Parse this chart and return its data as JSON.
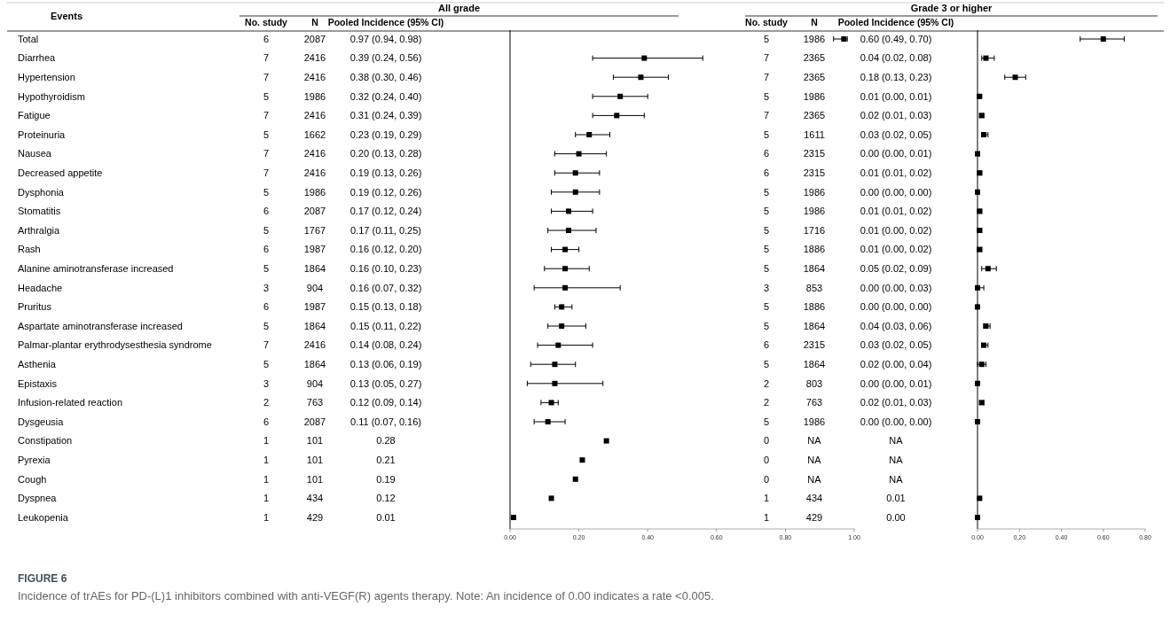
{
  "chart_data": [
    {
      "type": "other",
      "title": "All grade",
      "subtitle": "Grade 3 or higher",
      "ylabel": "Events",
      "categories": [
        "Total",
        "Diarrhea",
        "Hypertension",
        "Hypothyroidism",
        "Fatigue",
        "Proteinuria",
        "Nausea",
        "Decreased appetite",
        "Dysphonia",
        "Stomatitis",
        "Arthralgia",
        "Rash",
        "Alanine aminotransferase increased",
        "Headache",
        "Pruritus",
        "Aspartate aminotransferase increased",
        "Palmar-plantar erythrodysesthesia syndrome",
        "Asthenia",
        "Epistaxis",
        "Infusion-related reaction",
        "Dysgeusia",
        "Constipation",
        "Pyrexia",
        "Cough",
        "Dyspnea",
        "Leukopenia"
      ],
      "series": [
        {
          "name": "No. study",
          "values": [
            6,
            7,
            7,
            5,
            7,
            5,
            7,
            7,
            5,
            6,
            5,
            6,
            5,
            3,
            6,
            5,
            7,
            5,
            3,
            2,
            6,
            1,
            1,
            1,
            1,
            1
          ]
        },
        {
          "name": "N",
          "values": [
            2087,
            2416,
            2416,
            1986,
            2416,
            1662,
            2416,
            2416,
            1986,
            2087,
            1767,
            1987,
            1864,
            904,
            1987,
            1864,
            2416,
            1864,
            904,
            763,
            2087,
            101,
            101,
            101,
            434,
            429
          ]
        },
        {
          "name": "Pooled Incidence (95% CI)",
          "values": [
            0.97,
            0.39,
            0.38,
            0.32,
            0.31,
            0.23,
            0.2,
            0.19,
            0.19,
            0.17,
            0.17,
            0.16,
            0.16,
            0.16,
            0.15,
            0.15,
            0.14,
            0.13,
            0.13,
            0.12,
            0.11,
            0.28,
            0.21,
            0.19,
            0.12,
            0.01
          ],
          "value_labels": [
            "0.97 (0.94, 0.98)",
            "0.39 (0.24, 0.56)",
            "0.38 (0.30, 0.46)",
            "0.32 (0.24, 0.40)",
            "0.31 (0.24, 0.39)",
            "0.23 (0.19, 0.29)",
            "0.20 (0.13, 0.28)",
            "0.19 (0.13, 0.26)",
            "0.19 (0.12, 0.26)",
            "0.17 (0.12, 0.24)",
            "0.17 (0.11, 0.25)",
            "0.16 (0.12, 0.20)",
            "0.16 (0.10, 0.23)",
            "0.16 (0.07, 0.32)",
            "0.15 (0.13, 0.18)",
            "0.15 (0.11, 0.22)",
            "0.14 (0.08, 0.24)",
            "0.13 (0.06, 0.19)",
            "0.13 (0.05, 0.27)",
            "0.12 (0.09, 0.14)",
            "0.11 (0.07, 0.16)",
            "0.28",
            "0.21",
            "0.19",
            "0.12",
            "0.01"
          ]
        },
        {
          "name": "No. study",
          "values": [
            5,
            7,
            7,
            5,
            7,
            5,
            6,
            6,
            5,
            5,
            5,
            5,
            5,
            3,
            5,
            5,
            6,
            5,
            2,
            2,
            5,
            0,
            0,
            0,
            1,
            1
          ]
        },
        {
          "name": "N",
          "values": [
            1986,
            2365,
            2365,
            1986,
            2365,
            1611,
            2315,
            2315,
            1986,
            1986,
            1716,
            1886,
            1864,
            853,
            1886,
            1864,
            2315,
            1864,
            803,
            763,
            1986,
            null,
            null,
            null,
            434,
            429
          ],
          "value_labels": [
            "1986",
            "2365",
            "2365",
            "1986",
            "2365",
            "1611",
            "2315",
            "2315",
            "1986",
            "1986",
            "1716",
            "1886",
            "1864",
            "853",
            "1886",
            "1864",
            "2315",
            "1864",
            "803",
            "763",
            "1986",
            "NA",
            "NA",
            "NA",
            "434",
            "429"
          ]
        },
        {
          "name": "Pooled Incidence (95% CI)",
          "values": [
            0.6,
            0.04,
            0.18,
            0.01,
            0.02,
            0.03,
            0.0,
            0.01,
            0.0,
            0.01,
            0.01,
            0.01,
            0.05,
            0.0,
            0.0,
            0.04,
            0.03,
            0.02,
            0.0,
            0.02,
            0.0,
            null,
            null,
            null,
            0.01,
            0.0
          ],
          "value_labels": [
            "0.60 (0.49, 0.70)",
            "0.04 (0.02, 0.08)",
            "0.18 (0.13, 0.23)",
            "0.01 (0.00, 0.01)",
            "0.02 (0.01, 0.03)",
            "0.03 (0.02, 0.05)",
            "0.00 (0.00, 0.01)",
            "0.01 (0.01, 0.02)",
            "0.00 (0.00, 0.00)",
            "0.01 (0.01, 0.02)",
            "0.01 (0.00, 0.02)",
            "0.01 (0.00, 0.02)",
            "0.05 (0.02, 0.09)",
            "0.00 (0.00, 0.03)",
            "0.00 (0.00, 0.00)",
            "0.04 (0.03, 0.06)",
            "0.03 (0.02, 0.05)",
            "0.02 (0.00, 0.04)",
            "0.00 (0.00, 0.01)",
            "0.02 (0.01, 0.03)",
            "0.00 (0.00, 0.00)",
            "NA",
            "NA",
            "NA",
            "0.01",
            "0.00"
          ]
        }
      ],
      "data_labels": true,
      "annotations": [
        "FIGURE 6",
        "Incidence of trAEs for PD-(L)1 inhibitors combined with anti-VEGF(R) agents therapy. Note: An incidence of 0.00 indicates a rate <0.005."
      ]
    },
    {
      "type": "scatter",
      "orientation": "horizontal",
      "marker": "square",
      "categories": [
        null,
        null,
        null,
        null,
        null,
        null,
        null,
        null,
        null,
        null,
        null,
        null,
        null,
        null,
        null,
        null,
        null,
        null,
        null,
        null,
        null,
        null,
        null,
        null,
        null,
        null
      ],
      "xlim": [
        0,
        1
      ],
      "xticks": [
        {
          "value": 0,
          "label": "0.00"
        },
        {
          "value": 0.2,
          "label": "0.20"
        },
        {
          "value": 0.4,
          "label": "0.40"
        },
        {
          "value": 0.6,
          "label": "0.60"
        },
        {
          "value": 0.8,
          "label": "0.80"
        },
        {
          "value": 1,
          "label": "1.00"
        }
      ],
      "series": [
        {
          "color": "#000000",
          "values": [
            0.97,
            0.39,
            0.38,
            0.32,
            0.31,
            0.23,
            0.2,
            0.19,
            0.19,
            0.17,
            0.17,
            0.16,
            0.16,
            0.16,
            0.15,
            0.15,
            0.14,
            0.13,
            0.13,
            0.12,
            0.11,
            0.28,
            0.21,
            0.19,
            0.12,
            0.01
          ],
          "errors": [
            [
              0.94,
              0.98
            ],
            [
              0.24,
              0.56
            ],
            [
              0.3,
              0.46
            ],
            [
              0.24,
              0.4
            ],
            [
              0.24,
              0.39
            ],
            [
              0.19,
              0.29
            ],
            [
              0.13,
              0.28
            ],
            [
              0.13,
              0.26
            ],
            [
              0.12,
              0.26
            ],
            [
              0.12,
              0.24
            ],
            [
              0.11,
              0.25
            ],
            [
              0.12,
              0.2
            ],
            [
              0.1,
              0.23
            ],
            [
              0.07,
              0.32
            ],
            [
              0.13,
              0.18
            ],
            [
              0.11,
              0.22
            ],
            [
              0.08,
              0.24
            ],
            [
              0.06,
              0.19
            ],
            [
              0.05,
              0.27
            ],
            [
              0.09,
              0.14
            ],
            [
              0.07,
              0.16
            ],
            null,
            null,
            null,
            null,
            null
          ]
        }
      ]
    },
    {
      "type": "scatter",
      "orientation": "horizontal",
      "marker": "square",
      "categories": [
        null,
        null,
        null,
        null,
        null,
        null,
        null,
        null,
        null,
        null,
        null,
        null,
        null,
        null,
        null,
        null,
        null,
        null,
        null,
        null,
        null,
        null,
        null,
        null,
        null,
        null
      ],
      "xlim": [
        0,
        0.8
      ],
      "xticks": [
        {
          "value": 0,
          "label": "0.00"
        },
        {
          "value": 0.2,
          "label": "0.20"
        },
        {
          "value": 0.4,
          "label": "0.40"
        },
        {
          "value": 0.6,
          "label": "0.60"
        },
        {
          "value": 0.8,
          "label": "0.80"
        }
      ],
      "series": [
        {
          "color": "#000000",
          "values": [
            0.6,
            0.04,
            0.18,
            0.01,
            0.02,
            0.03,
            0.0,
            0.01,
            0.0,
            0.01,
            0.01,
            0.01,
            0.05,
            0.0,
            0.0,
            0.04,
            0.03,
            0.02,
            0.0,
            0.02,
            0.0,
            null,
            null,
            null,
            0.01,
            0.0
          ],
          "errors": [
            [
              0.49,
              0.7
            ],
            [
              0.02,
              0.08
            ],
            [
              0.13,
              0.23
            ],
            [
              0.0,
              0.01
            ],
            [
              0.01,
              0.03
            ],
            [
              0.02,
              0.05
            ],
            [
              0.0,
              0.01
            ],
            [
              0.01,
              0.02
            ],
            [
              0.0,
              0.0
            ],
            [
              0.01,
              0.02
            ],
            [
              0.0,
              0.02
            ],
            [
              0.0,
              0.02
            ],
            [
              0.02,
              0.09
            ],
            [
              0.0,
              0.03
            ],
            [
              0.0,
              0.0
            ],
            [
              0.03,
              0.06
            ],
            [
              0.02,
              0.05
            ],
            [
              0.0,
              0.04
            ],
            [
              0.0,
              0.01
            ],
            [
              0.01,
              0.03
            ],
            [
              0.0,
              0.0
            ],
            null,
            null,
            null,
            null,
            null
          ]
        }
      ]
    }
  ]
}
